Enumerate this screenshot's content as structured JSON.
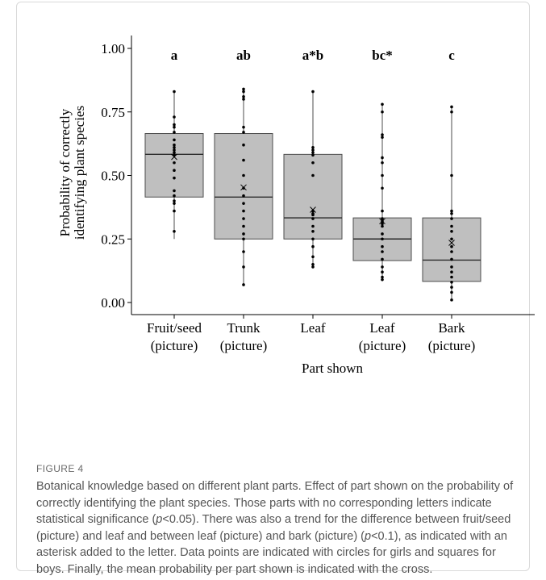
{
  "chart_data": {
    "type": "box",
    "xlabel": "Part shown",
    "ylabel_lines": [
      "Probability of correctly",
      "identifying plant species"
    ],
    "ylim": [
      0,
      1.05
    ],
    "yticks": [
      "0.00",
      "0.25",
      "0.50",
      "0.75",
      "1.00"
    ],
    "grid": false,
    "categories": [
      {
        "name": [
          "Fruit/seed",
          "(picture)"
        ],
        "letter": "a",
        "q1": 0.415,
        "median": 0.583,
        "q3": 0.665,
        "whisker_low": 0.25,
        "whisker_high": 0.83,
        "mean": 0.573,
        "points": [
          0.28,
          0.36,
          0.39,
          0.4,
          0.42,
          0.44,
          0.49,
          0.52,
          0.55,
          0.58,
          0.59,
          0.6,
          0.61,
          0.62,
          0.64,
          0.67,
          0.69,
          0.7,
          0.73,
          0.83
        ]
      },
      {
        "name": [
          "Trunk",
          "(picture)"
        ],
        "letter": "ab",
        "q1": 0.25,
        "median": 0.415,
        "q3": 0.665,
        "whisker_low": 0.07,
        "whisker_high": 0.84,
        "mean": 0.453,
        "points": [
          0.07,
          0.14,
          0.2,
          0.25,
          0.27,
          0.3,
          0.33,
          0.36,
          0.39,
          0.42,
          0.45,
          0.5,
          0.56,
          0.62,
          0.67,
          0.69,
          0.8,
          0.81,
          0.83,
          0.84
        ]
      },
      {
        "name": [
          "Leaf",
          ""
        ],
        "letter": "a*b",
        "q1": 0.25,
        "median": 0.333,
        "q3": 0.583,
        "whisker_low": 0.14,
        "whisker_high": 0.83,
        "mean": 0.365,
        "points": [
          0.14,
          0.15,
          0.18,
          0.22,
          0.25,
          0.28,
          0.3,
          0.33,
          0.345,
          0.35,
          0.36,
          0.5,
          0.55,
          0.58,
          0.59,
          0.6,
          0.61,
          0.83
        ]
      },
      {
        "name": [
          "Leaf",
          "(picture)"
        ],
        "letter": "bc*",
        "q1": 0.165,
        "median": 0.25,
        "q3": 0.333,
        "whisker_low": 0.09,
        "whisker_high": 0.78,
        "mean": 0.32,
        "points": [
          0.09,
          0.1,
          0.12,
          0.14,
          0.17,
          0.2,
          0.22,
          0.25,
          0.27,
          0.3,
          0.31,
          0.32,
          0.33,
          0.36,
          0.45,
          0.5,
          0.55,
          0.57,
          0.65,
          0.66,
          0.75,
          0.78
        ]
      },
      {
        "name": [
          "Bark",
          "(picture)"
        ],
        "letter": "c",
        "q1": 0.083,
        "median": 0.167,
        "q3": 0.333,
        "whisker_low": 0.01,
        "whisker_high": 0.77,
        "mean": 0.235,
        "points": [
          0.01,
          0.04,
          0.06,
          0.08,
          0.1,
          0.12,
          0.14,
          0.17,
          0.2,
          0.22,
          0.25,
          0.28,
          0.3,
          0.33,
          0.35,
          0.36,
          0.5,
          0.75,
          0.77
        ]
      }
    ],
    "colors": {
      "box_fill": "#bfbfbf",
      "box_stroke": "#4d4d4d",
      "points": "#000000"
    },
    "mean_marker": "cross"
  },
  "figure_label": "FIGURE 4",
  "caption": {
    "part1": "Botanical knowledge based on different plant parts. Effect of part shown on the probability of correctly identifying the plant species. Those parts with no corresponding letters indicate statistical significance (",
    "p1": "p",
    "part2": "<0.05). There was also a trend for the difference between fruit/seed (picture) and leaf and between leaf (picture) and bark (picture) (",
    "p2": "p",
    "part3": "<0.1), as indicated with an asterisk added to the letter. Data points are indicated with circles for girls and squares for boys. Finally, the mean probability per part shown is indicated with the cross."
  }
}
